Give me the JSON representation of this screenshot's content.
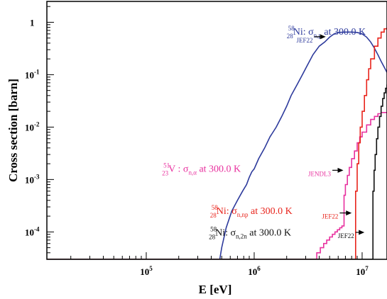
{
  "chart_data": {
    "type": "line",
    "xlabel": "E [eV]",
    "ylabel": "Cross section [barn]",
    "xscale": "log",
    "yscale": "log",
    "xlim": [
      12000,
      17000000
    ],
    "ylim": [
      3e-05,
      2.5
    ],
    "grid": false,
    "legend": "annotations",
    "x_ticks": [
      {
        "value": 100000,
        "base": "10",
        "exp": "5"
      },
      {
        "value": 1000000,
        "base": "10",
        "exp": "6"
      },
      {
        "value": 10000000,
        "base": "10",
        "exp": "7"
      }
    ],
    "y_ticks": [
      {
        "value": 1,
        "base": "1",
        "exp": ""
      },
      {
        "value": 0.1,
        "base": "10",
        "exp": "-1"
      },
      {
        "value": 0.01,
        "base": "10",
        "exp": "-2"
      },
      {
        "value": 0.001,
        "base": "10",
        "exp": "-3"
      },
      {
        "value": 0.0001,
        "base": "10",
        "exp": "-4"
      }
    ],
    "series": [
      {
        "color": "#2d3a9c",
        "label": {
          "mass": "58",
          "z": "28",
          "elem": "Ni",
          "sep": ": ",
          "sigma": "σ",
          "sub": "n,p",
          "temp": " at 300.0 K",
          "lib": "JEF22"
        },
        "label_anchor": [
          2000000,
          0.58
        ],
        "arrow_from": [
          3600000,
          0.53
        ],
        "arrow_to": [
          4600000,
          0.53
        ],
        "x": [
          12000,
          480000,
          500000,
          550000,
          620000,
          700000,
          780000,
          850000,
          900000,
          950000,
          1000000,
          1100000,
          1250000,
          1400000,
          1600000,
          1800000,
          2000000,
          2200000,
          2500000,
          2800000,
          3100000,
          3500000,
          4000000,
          4500000,
          5000000,
          5500000,
          6000000,
          7000000,
          8000000,
          9000000,
          10000000,
          11000000,
          12000000,
          13000000,
          14000000,
          15000000,
          16000000,
          17000000
        ],
        "y": [
          3e-05,
          3e-05,
          5e-05,
          0.00012,
          0.00025,
          0.0004,
          0.0006,
          0.0008,
          0.0011,
          0.0014,
          0.0016,
          0.0025,
          0.004,
          0.0065,
          0.01,
          0.016,
          0.025,
          0.04,
          0.065,
          0.1,
          0.15,
          0.24,
          0.35,
          0.42,
          0.52,
          0.6,
          0.64,
          0.65,
          0.65,
          0.64,
          0.6,
          0.52,
          0.42,
          0.32,
          0.24,
          0.18,
          0.14,
          0.11
        ]
      },
      {
        "color": "#e8309e",
        "label": {
          "mass": "51",
          "z": "23",
          "elem": "V",
          "sep": " : ",
          "sigma": "σ",
          "sub": "n,α",
          "temp": " at 300.0 K",
          "lib": "JENDL3"
        },
        "label_anchor": [
          140000,
          0.0014
        ],
        "arrow_from": [
          5300000,
          0.0015
        ],
        "arrow_to": [
          6700000,
          0.0015
        ],
        "x": [
          12000,
          3600000,
          3800000,
          4100000,
          4400000,
          4700000,
          5000000,
          5300000,
          5600000,
          5900000,
          6200000,
          6500000,
          6700000,
          6800000,
          7000000,
          7300000,
          7600000,
          8000000,
          8500000,
          9000000,
          9500000,
          10000000,
          11000000,
          12000000,
          13000000,
          14000000,
          15000000,
          16000000,
          17000000
        ],
        "y": [
          3e-05,
          3e-05,
          4e-05,
          5e-05,
          6e-05,
          7e-05,
          8e-05,
          9e-05,
          0.0001,
          0.00011,
          0.00012,
          0.00013,
          0.00013,
          0.0005,
          0.0008,
          0.0012,
          0.0017,
          0.0025,
          0.0035,
          0.005,
          0.0065,
          0.008,
          0.011,
          0.014,
          0.016,
          0.018,
          0.019,
          0.019,
          0.019
        ]
      },
      {
        "color": "#e8241c",
        "label": {
          "mass": "58",
          "z": "28",
          "elem": "Ni",
          "sep": ": ",
          "sigma": "σ",
          "sub": "n,np",
          "temp": " at 300.0 K",
          "lib": "JEF22"
        },
        "label_anchor": [
          390000,
          0.00022
        ],
        "arrow_from": [
          6200000,
          0.00023
        ],
        "arrow_to": [
          8000000,
          0.00023
        ],
        "x": [
          12000,
          8500000,
          8700000,
          9000000,
          9300000,
          9600000,
          10000000,
          10500000,
          11000000,
          11500000,
          12000000,
          13000000,
          14000000,
          15000000,
          16000000,
          17000000
        ],
        "y": [
          3e-05,
          3e-05,
          0.0006,
          0.002,
          0.005,
          0.01,
          0.02,
          0.04,
          0.08,
          0.13,
          0.2,
          0.35,
          0.5,
          0.65,
          0.75,
          0.8
        ]
      },
      {
        "color": "#111111",
        "label": {
          "mass": "58",
          "z": "28",
          "elem": "Ni",
          "sep": ": ",
          "sigma": "σ",
          "sub": "n,2n",
          "temp": " at 300.0 K",
          "lib": "JEF22"
        },
        "label_anchor": [
          380000,
          8.5e-05
        ],
        "arrow_from": [
          8700000,
          9.8e-05
        ],
        "arrow_to": [
          10500000,
          9.8e-05
        ],
        "x": [
          12000,
          12400000,
          12600000,
          12900000,
          13200000,
          13600000,
          14000000,
          14500000,
          15000000,
          15500000,
          16000000,
          16500000,
          17000000
        ],
        "y": [
          3e-05,
          3e-05,
          0.0006,
          0.0015,
          0.003,
          0.006,
          0.01,
          0.016,
          0.025,
          0.035,
          0.045,
          0.055,
          0.065
        ]
      }
    ]
  }
}
